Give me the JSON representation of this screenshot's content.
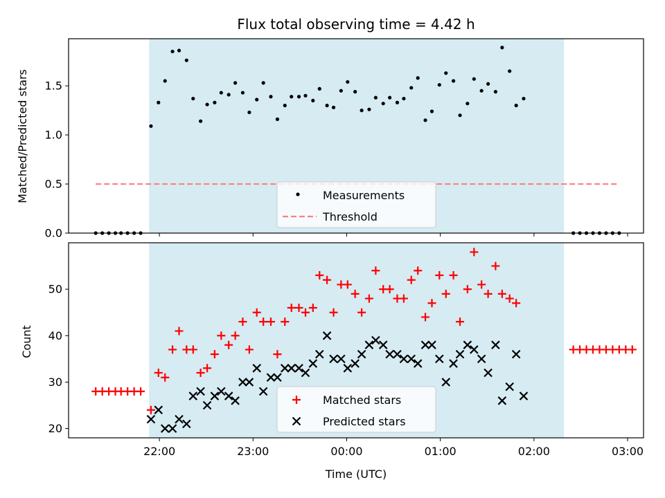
{
  "chart_data": [
    {
      "type": "scatter",
      "title": "Flux total observing time = 4.42 h",
      "xlabel": "",
      "ylabel": "Matched/Predicted stars",
      "ylim": [
        0.0,
        1.98
      ],
      "yticks": [
        0.0,
        0.5,
        1.0,
        1.5
      ],
      "ytick_labels": [
        "0.0",
        "0.5",
        "1.0",
        "1.5"
      ],
      "xlim_hours": [
        -2.97,
        3.17
      ],
      "xticks_hours": [
        -2,
        -1,
        0,
        1,
        2,
        3
      ],
      "shaded_span_hours": [
        -2.11,
        2.32
      ],
      "legend": {
        "placement": "lower center",
        "entries": [
          "Measurements",
          "Threshold"
        ]
      },
      "series": [
        {
          "name": "Measurements",
          "style": "point",
          "color": "#000000",
          "points": [
            [
              -2.68,
              0.0
            ],
            [
              -2.61,
              0.0
            ],
            [
              -2.54,
              0.0
            ],
            [
              -2.47,
              0.0
            ],
            [
              -2.41,
              0.0
            ],
            [
              -2.34,
              0.0
            ],
            [
              -2.27,
              0.0
            ],
            [
              -2.2,
              0.0
            ],
            [
              -2.09,
              1.09
            ],
            [
              -2.01,
              1.33
            ],
            [
              -1.94,
              1.55
            ],
            [
              -1.86,
              1.85
            ],
            [
              -1.79,
              1.86
            ],
            [
              -1.71,
              1.76
            ],
            [
              -1.64,
              1.37
            ],
            [
              -1.56,
              1.14
            ],
            [
              -1.49,
              1.31
            ],
            [
              -1.41,
              1.33
            ],
            [
              -1.34,
              1.43
            ],
            [
              -1.26,
              1.41
            ],
            [
              -1.19,
              1.53
            ],
            [
              -1.11,
              1.43
            ],
            [
              -1.04,
              1.23
            ],
            [
              -0.96,
              1.36
            ],
            [
              -0.89,
              1.53
            ],
            [
              -0.81,
              1.39
            ],
            [
              -0.74,
              1.16
            ],
            [
              -0.66,
              1.3
            ],
            [
              -0.59,
              1.39
            ],
            [
              -0.51,
              1.39
            ],
            [
              -0.44,
              1.4
            ],
            [
              -0.36,
              1.35
            ],
            [
              -0.29,
              1.47
            ],
            [
              -0.21,
              1.3
            ],
            [
              -0.14,
              1.28
            ],
            [
              -0.06,
              1.45
            ],
            [
              0.01,
              1.54
            ],
            [
              0.09,
              1.44
            ],
            [
              0.16,
              1.25
            ],
            [
              0.24,
              1.26
            ],
            [
              0.31,
              1.38
            ],
            [
              0.39,
              1.32
            ],
            [
              0.46,
              1.38
            ],
            [
              0.54,
              1.33
            ],
            [
              0.61,
              1.37
            ],
            [
              0.69,
              1.48
            ],
            [
              0.76,
              1.58
            ],
            [
              0.84,
              1.15
            ],
            [
              0.91,
              1.24
            ],
            [
              0.99,
              1.51
            ],
            [
              1.06,
              1.63
            ],
            [
              1.14,
              1.55
            ],
            [
              1.21,
              1.2
            ],
            [
              1.29,
              1.32
            ],
            [
              1.36,
              1.57
            ],
            [
              1.44,
              1.45
            ],
            [
              1.51,
              1.52
            ],
            [
              1.59,
              1.44
            ],
            [
              1.66,
              1.89
            ],
            [
              1.74,
              1.65
            ],
            [
              1.81,
              1.3
            ],
            [
              1.89,
              1.37
            ],
            [
              2.42,
              0.0
            ],
            [
              2.49,
              0.0
            ],
            [
              2.56,
              0.0
            ],
            [
              2.63,
              0.0
            ],
            [
              2.7,
              0.0
            ],
            [
              2.77,
              0.0
            ],
            [
              2.84,
              0.0
            ],
            [
              2.91,
              0.0
            ]
          ]
        },
        {
          "name": "Threshold",
          "style": "dashed-line",
          "color": "#ff7f7f",
          "x": [
            -2.68,
            2.91
          ],
          "y": [
            0.5,
            0.5
          ]
        }
      ]
    },
    {
      "type": "scatter",
      "title": "",
      "xlabel": "Time (UTC)",
      "ylabel": "Count",
      "ylim": [
        18.0,
        60.0
      ],
      "yticks": [
        20,
        30,
        40,
        50
      ],
      "ytick_labels": [
        "20",
        "30",
        "40",
        "50"
      ],
      "xlim_hours": [
        -2.97,
        3.17
      ],
      "xticks_hours": [
        -2,
        -1,
        0,
        1,
        2,
        3
      ],
      "xtick_labels": [
        "22:00",
        "23:00",
        "00:00",
        "01:00",
        "02:00",
        "03:00"
      ],
      "shaded_span_hours": [
        -2.11,
        2.32
      ],
      "legend": {
        "placement": "lower center",
        "entries": [
          "Matched stars",
          "Predicted stars"
        ]
      },
      "series": [
        {
          "name": "Matched stars",
          "marker": "plus",
          "color": "#ff0000",
          "points": [
            [
              -2.68,
              28
            ],
            [
              -2.61,
              28
            ],
            [
              -2.54,
              28
            ],
            [
              -2.47,
              28
            ],
            [
              -2.41,
              28
            ],
            [
              -2.34,
              28
            ],
            [
              -2.27,
              28
            ],
            [
              -2.2,
              28
            ],
            [
              -2.09,
              24
            ],
            [
              -2.01,
              32
            ],
            [
              -1.94,
              31
            ],
            [
              -1.86,
              37
            ],
            [
              -1.79,
              41
            ],
            [
              -1.71,
              37
            ],
            [
              -1.64,
              37
            ],
            [
              -1.56,
              32
            ],
            [
              -1.49,
              33
            ],
            [
              -1.41,
              36
            ],
            [
              -1.34,
              40
            ],
            [
              -1.26,
              38
            ],
            [
              -1.19,
              40
            ],
            [
              -1.11,
              43
            ],
            [
              -1.04,
              37
            ],
            [
              -0.96,
              45
            ],
            [
              -0.89,
              43
            ],
            [
              -0.81,
              43
            ],
            [
              -0.74,
              36
            ],
            [
              -0.66,
              43
            ],
            [
              -0.59,
              46
            ],
            [
              -0.51,
              46
            ],
            [
              -0.44,
              45
            ],
            [
              -0.36,
              46
            ],
            [
              -0.29,
              53
            ],
            [
              -0.21,
              52
            ],
            [
              -0.14,
              45
            ],
            [
              -0.06,
              51
            ],
            [
              0.01,
              51
            ],
            [
              0.09,
              49
            ],
            [
              0.16,
              45
            ],
            [
              0.24,
              48
            ],
            [
              0.31,
              54
            ],
            [
              0.39,
              50
            ],
            [
              0.46,
              50
            ],
            [
              0.54,
              48
            ],
            [
              0.61,
              48
            ],
            [
              0.69,
              52
            ],
            [
              0.76,
              54
            ],
            [
              0.84,
              44
            ],
            [
              0.91,
              47
            ],
            [
              0.99,
              53
            ],
            [
              1.06,
              49
            ],
            [
              1.14,
              53
            ],
            [
              1.21,
              43
            ],
            [
              1.29,
              50
            ],
            [
              1.36,
              58
            ],
            [
              1.44,
              51
            ],
            [
              1.51,
              49
            ],
            [
              1.59,
              55
            ],
            [
              1.66,
              49
            ],
            [
              1.74,
              48
            ],
            [
              1.81,
              47
            ],
            [
              2.42,
              37
            ],
            [
              2.49,
              37
            ],
            [
              2.56,
              37
            ],
            [
              2.63,
              37
            ],
            [
              2.7,
              37
            ],
            [
              2.77,
              37
            ],
            [
              2.84,
              37
            ],
            [
              2.91,
              37
            ],
            [
              2.98,
              37
            ],
            [
              3.05,
              37
            ]
          ]
        },
        {
          "name": "Predicted stars",
          "marker": "x",
          "color": "#000000",
          "points": [
            [
              -2.09,
              22
            ],
            [
              -2.01,
              24
            ],
            [
              -1.94,
              20
            ],
            [
              -1.86,
              20
            ],
            [
              -1.79,
              22
            ],
            [
              -1.71,
              21
            ],
            [
              -1.64,
              27
            ],
            [
              -1.56,
              28
            ],
            [
              -1.49,
              25
            ],
            [
              -1.41,
              27
            ],
            [
              -1.34,
              28
            ],
            [
              -1.26,
              27
            ],
            [
              -1.19,
              26
            ],
            [
              -1.11,
              30
            ],
            [
              -1.04,
              30
            ],
            [
              -0.96,
              33
            ],
            [
              -0.89,
              28
            ],
            [
              -0.81,
              31
            ],
            [
              -0.74,
              31
            ],
            [
              -0.66,
              33
            ],
            [
              -0.59,
              33
            ],
            [
              -0.51,
              33
            ],
            [
              -0.44,
              32
            ],
            [
              -0.36,
              34
            ],
            [
              -0.29,
              36
            ],
            [
              -0.21,
              40
            ],
            [
              -0.14,
              35
            ],
            [
              -0.06,
              35
            ],
            [
              0.01,
              33
            ],
            [
              0.09,
              34
            ],
            [
              0.16,
              36
            ],
            [
              0.24,
              38
            ],
            [
              0.31,
              39
            ],
            [
              0.39,
              38
            ],
            [
              0.46,
              36
            ],
            [
              0.54,
              36
            ],
            [
              0.61,
              35
            ],
            [
              0.69,
              35
            ],
            [
              0.76,
              34
            ],
            [
              0.84,
              38
            ],
            [
              0.91,
              38
            ],
            [
              0.99,
              35
            ],
            [
              1.06,
              30
            ],
            [
              1.14,
              34
            ],
            [
              1.21,
              36
            ],
            [
              1.29,
              38
            ],
            [
              1.36,
              37
            ],
            [
              1.44,
              35
            ],
            [
              1.51,
              32
            ],
            [
              1.59,
              38
            ],
            [
              1.66,
              26
            ],
            [
              1.74,
              29
            ],
            [
              1.81,
              36
            ],
            [
              1.89,
              27
            ]
          ]
        }
      ]
    }
  ]
}
